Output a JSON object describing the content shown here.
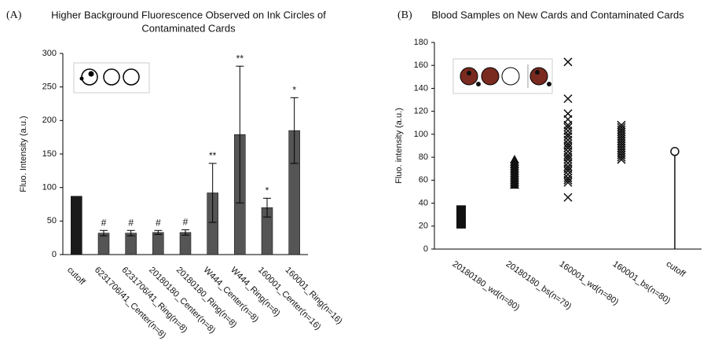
{
  "chart_data": [
    {
      "type": "bar",
      "label": "(A)",
      "title": [
        "Higher Background Fluorescence Observed on Ink Circles of",
        "Contaminated Cards"
      ],
      "y_label": "Fluo. Intensity (a.u.)",
      "categories": [
        "cutoff",
        "6231706/41_Center(n=8)",
        "6231706/41_Ring(n=8)",
        "20180180_Center(n=8)",
        "20180180_Ring(n=8)",
        "W444_Center(n=8)",
        "W444_Ring(n=8)",
        "160001_Center(n=16)",
        "160001_Ring(n=16)"
      ],
      "values": [
        87,
        32,
        32,
        33,
        33,
        92,
        179,
        70,
        185
      ],
      "errors": [
        null,
        4,
        4,
        3,
        4,
        44,
        102,
        14,
        49
      ],
      "annotations": [
        null,
        "#",
        "#",
        "#",
        "#",
        "**",
        "**",
        "*",
        "*"
      ],
      "colors": [
        "#1a1a1a",
        "#555555",
        "#555555",
        "#555555",
        "#555555",
        "#555555",
        "#555555",
        "#555555",
        "#555555"
      ],
      "ylim": [
        0,
        300
      ],
      "yticks": [
        0,
        50,
        100,
        150,
        200,
        250,
        300
      ]
    },
    {
      "type": "strip",
      "label": "(B)",
      "title": [
        "Blood Samples on New Cards and Contaminated Cards"
      ],
      "y_label": "Fluo. intensity (a.u.)",
      "categories": [
        "20180180_wd(n=80)",
        "20180180_bs(n=79)",
        "160001_wd(n=80)",
        "160001_bs(n=80)",
        "cutoff"
      ],
      "markers": [
        "square",
        "triangle",
        "x",
        "x",
        "circle"
      ],
      "values": [
        [
          22,
          23,
          24,
          25,
          26,
          27,
          28,
          29,
          30,
          31,
          32,
          33,
          34
        ],
        [
          56,
          58,
          60,
          62,
          64,
          66,
          68,
          70,
          72,
          74,
          76,
          78
        ],
        [
          45,
          58,
          60,
          62,
          65,
          68,
          70,
          72,
          75,
          78,
          80,
          82,
          85,
          88,
          90,
          92,
          95,
          98,
          100,
          103,
          106,
          108,
          113,
          118,
          131,
          163
        ],
        [
          78,
          80,
          82,
          84,
          86,
          88,
          90,
          92,
          94,
          96,
          98,
          100,
          102,
          104,
          106,
          108
        ],
        [
          85
        ]
      ],
      "color": "#111111",
      "ylim": [
        0,
        180
      ],
      "yticks": [
        0,
        20,
        40,
        60,
        80,
        100,
        120,
        140,
        160,
        180
      ]
    }
  ]
}
